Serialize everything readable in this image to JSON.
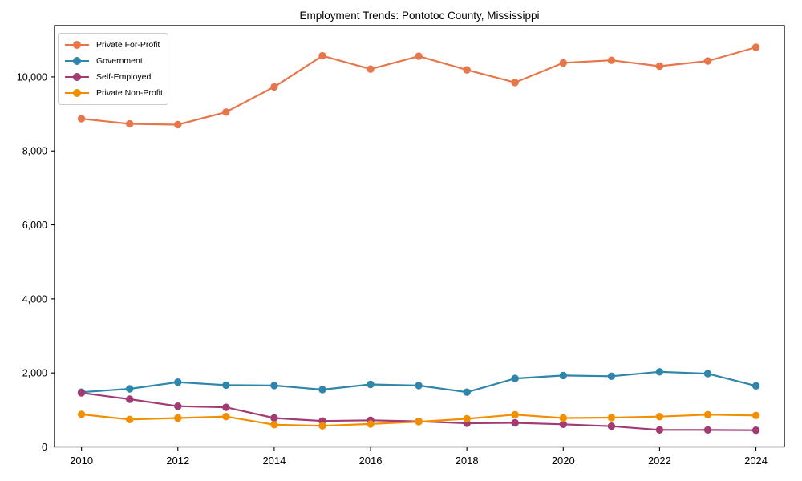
{
  "chart_data": {
    "type": "line",
    "title": "Employment Trends: Pontotoc County, Mississippi",
    "xlabel": "",
    "ylabel": "",
    "x": [
      2010,
      2011,
      2012,
      2013,
      2014,
      2015,
      2016,
      2017,
      2018,
      2019,
      2020,
      2021,
      2022,
      2023,
      2024
    ],
    "series": [
      {
        "name": "Private For-Profit",
        "color": "#E8764B",
        "values": [
          8870,
          8730,
          8710,
          9050,
          9730,
          10570,
          10210,
          10560,
          10190,
          9850,
          10380,
          10450,
          10290,
          10430,
          10800
        ]
      },
      {
        "name": "Government",
        "color": "#2E86AB",
        "values": [
          1480,
          1570,
          1750,
          1670,
          1660,
          1550,
          1690,
          1660,
          1480,
          1850,
          1930,
          1910,
          2030,
          1980,
          1650
        ]
      },
      {
        "name": "Self-Employed",
        "color": "#A23B72",
        "values": [
          1460,
          1290,
          1100,
          1070,
          780,
          700,
          720,
          690,
          640,
          650,
          610,
          560,
          460,
          460,
          450
        ]
      },
      {
        "name": "Private Non-Profit",
        "color": "#F18F01",
        "values": [
          880,
          740,
          780,
          820,
          600,
          570,
          620,
          680,
          760,
          870,
          780,
          790,
          820,
          870,
          850
        ]
      }
    ],
    "xticks": [
      2010,
      2012,
      2014,
      2016,
      2018,
      2020,
      2022,
      2024
    ],
    "xtick_labels": [
      "2010",
      "2012",
      "2014",
      "2016",
      "2018",
      "2020",
      "2022",
      "2024"
    ],
    "yticks": [
      0,
      2000,
      4000,
      6000,
      8000,
      10000
    ],
    "ytick_labels": [
      "0",
      "2,000",
      "4,000",
      "6,000",
      "8,000",
      "10,000"
    ],
    "xlim": [
      2009.44,
      2024.59
    ],
    "ylim": [
      0,
      11385
    ],
    "grid": false,
    "legend_position": "upper-left",
    "axis_color": "#000000",
    "background_color": "#ffffff"
  }
}
